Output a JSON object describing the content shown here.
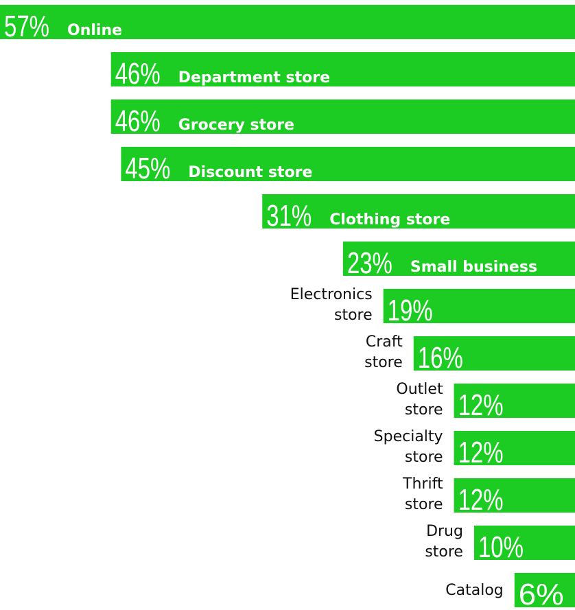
{
  "chart_data": {
    "type": "bar",
    "orientation": "horizontal",
    "title": "",
    "xlabel": "",
    "ylabel": "",
    "xlim": [
      0,
      57
    ],
    "grid": false,
    "bar_color": "#1ccc22",
    "categories": [
      "Online",
      "Department store",
      "Grocery store",
      "Discount store",
      "Clothing store",
      "Small business",
      "Electronics store",
      "Craft store",
      "Outlet store",
      "Specialty store",
      "Thrift store",
      "Drug store",
      "Catalog"
    ],
    "values": [
      57,
      46,
      46,
      45,
      31,
      23,
      19,
      16,
      12,
      12,
      12,
      10,
      6
    ],
    "value_labels": [
      "57%",
      "46%",
      "46%",
      "45%",
      "31%",
      "23%",
      "19%",
      "16%",
      "12%",
      "12%",
      "12%",
      "10%",
      "6%"
    ],
    "category_label_lines": [
      [
        "Online"
      ],
      [
        "Department store"
      ],
      [
        "Grocery store"
      ],
      [
        "Discount store"
      ],
      [
        "Clothing store"
      ],
      [
        "Small business"
      ],
      [
        "Electronics",
        "store"
      ],
      [
        "Craft",
        "store"
      ],
      [
        "Outlet",
        "store"
      ],
      [
        "Specialty",
        "store"
      ],
      [
        "Thrift",
        "store"
      ],
      [
        "Drug",
        "store"
      ],
      [
        "Catalog"
      ]
    ],
    "label_inside_bar": [
      true,
      true,
      true,
      true,
      true,
      true,
      false,
      false,
      false,
      false,
      false,
      false,
      false
    ]
  }
}
